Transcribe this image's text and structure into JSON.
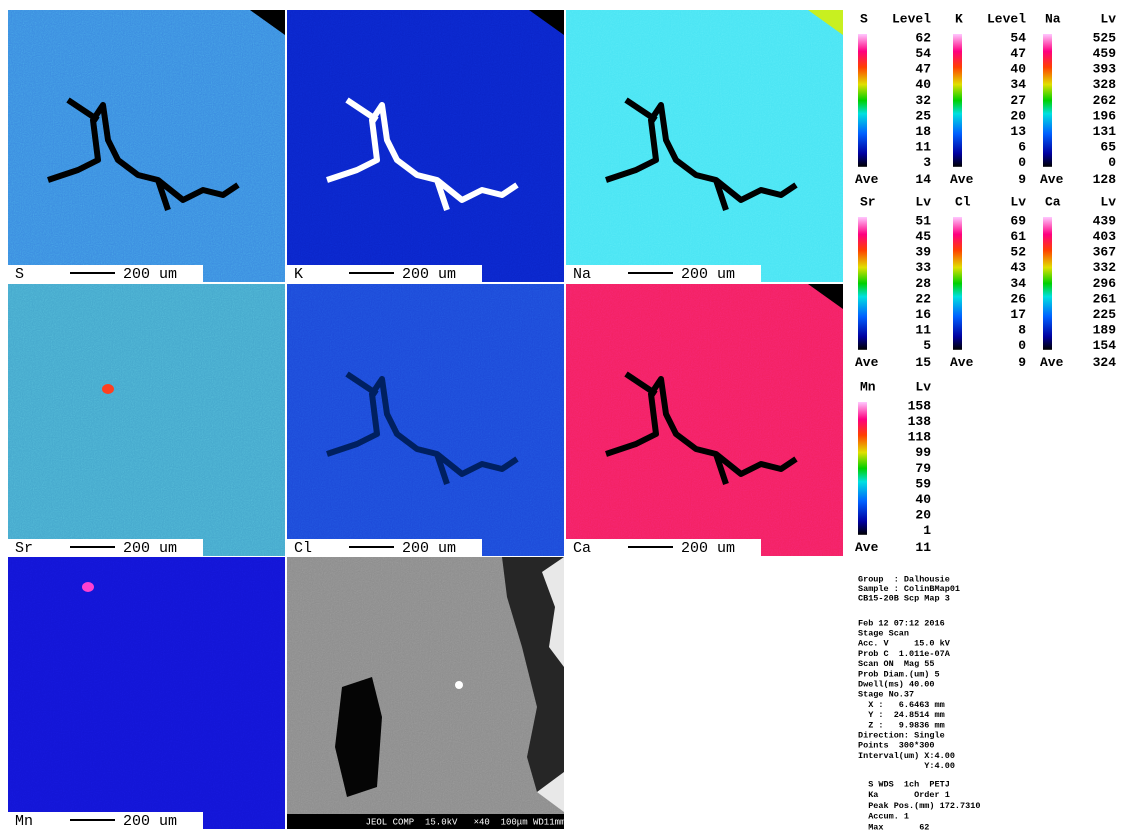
{
  "maps": [
    {
      "element": "S",
      "scale": "200 um"
    },
    {
      "element": "K",
      "scale": "200 um"
    },
    {
      "element": "Na",
      "scale": "200 um"
    },
    {
      "element": "Sr",
      "scale": "200 um"
    },
    {
      "element": "Cl",
      "scale": "200 um"
    },
    {
      "element": "Ca",
      "scale": "200 um"
    },
    {
      "element": "Mn",
      "scale": "200 um"
    }
  ],
  "bse_footer": "JEOL COMP  15.0kV   ×40  100μm WD11mm",
  "legends": [
    {
      "element": "S",
      "unit": "Level",
      "levels": [
        62,
        54,
        47,
        40,
        32,
        25,
        18,
        11,
        3
      ],
      "ave_label": "Ave",
      "ave": 14
    },
    {
      "element": "K",
      "unit": "Level",
      "levels": [
        54,
        47,
        40,
        34,
        27,
        20,
        13,
        6,
        0
      ],
      "ave_label": "Ave",
      "ave": 9
    },
    {
      "element": "Na",
      "unit": "Lv",
      "levels": [
        525,
        459,
        393,
        328,
        262,
        196,
        131,
        65,
        0
      ],
      "ave_label": "Ave",
      "ave": 128
    },
    {
      "element": "Sr",
      "unit": "Lv",
      "levels": [
        51,
        45,
        39,
        33,
        28,
        22,
        16,
        11,
        5
      ],
      "ave_label": "Ave",
      "ave": 15
    },
    {
      "element": "Cl",
      "unit": "Lv",
      "levels": [
        69,
        61,
        52,
        43,
        34,
        26,
        17,
        8,
        0
      ],
      "ave_label": "Ave",
      "ave": 9
    },
    {
      "element": "Ca",
      "unit": "Lv",
      "levels": [
        439,
        403,
        367,
        332,
        296,
        261,
        225,
        189,
        154
      ],
      "ave_label": "Ave",
      "ave": 324
    },
    {
      "element": "Mn",
      "unit": "Lv",
      "levels": [
        158,
        138,
        118,
        99,
        79,
        59,
        40,
        20,
        1
      ],
      "ave_label": "Ave",
      "ave": 11
    }
  ],
  "info": [
    [
      "Group  : Dalhousie",
      "Sample : ColinBMap01",
      "CB15-20B Scp Map 3"
    ],
    [
      "Feb 12 07:12 2016",
      "Stage Scan",
      "Acc. V     15.0 kV",
      "Prob C  1.011e-07A",
      "Scan ON  Mag 55",
      "Prob Diam.(um) 5",
      "Dwell(ms) 40.00",
      "Stage No.37",
      "  X :   6.6463 mm",
      "  Y :  24.8514 mm",
      "  Z :   9.9836 mm",
      "Direction: Single",
      "Points  300*300",
      "Interval(um) X:4.00",
      "             Y:4.00"
    ],
    [
      "  S WDS  1ch  PETJ",
      "  Ka       Order 1",
      "  Peak Pos.(mm) 172.7310",
      "  Accum. 1",
      "  Max       62"
    ]
  ]
}
